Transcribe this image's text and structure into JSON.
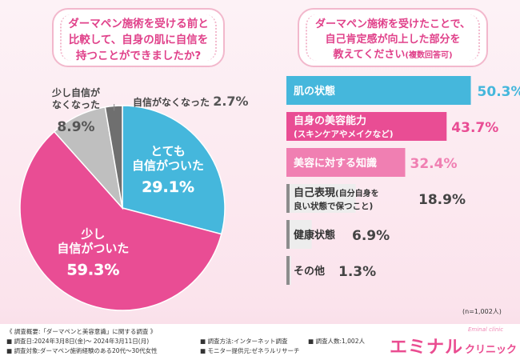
{
  "left_question": {
    "line1": "ダーマペン施術を受ける前と",
    "line2": "比較して、自身の肌に自信を",
    "line3": "持つことができましたか?"
  },
  "right_question": {
    "line1": "ダーマペン施術を受けたことで、",
    "line2": "自己肯定感が向上した部分を",
    "line3_main": "教えてください",
    "line3_note": "(複数回答可)"
  },
  "respondents_note": "(n=1,002人)",
  "chart_data": [
    {
      "type": "pie",
      "slices": [
        {
          "label_lines": [
            "とても",
            "自信がついた"
          ],
          "value": 29.1,
          "value_label": "29.1%",
          "color": "#45b7dc"
        },
        {
          "label_lines": [
            "少し",
            "自信がついた"
          ],
          "value": 59.3,
          "value_label": "59.3%",
          "color": "#e94d94"
        },
        {
          "label_lines": [
            "少し自信が",
            "なくなった"
          ],
          "value": 8.9,
          "value_label": "8.9%",
          "color": "#bfbfbf"
        },
        {
          "label_lines": [
            "自信がなくなった"
          ],
          "value": 2.7,
          "value_label": "2.7%",
          "color": "#6f6f6f"
        }
      ]
    },
    {
      "type": "bar",
      "orientation": "horizontal",
      "xlim": [
        0,
        60
      ],
      "grid": false,
      "bars": [
        {
          "label": "肌の状態",
          "sublabel": "",
          "value": 50.3,
          "value_label": "50.3%",
          "fill": "#45b7dc",
          "text_color": "#ffffff",
          "value_color": "#45b7dc"
        },
        {
          "label": "自身の美容能力",
          "sublabel": "(スキンケアやメイクなど)",
          "value": 43.7,
          "value_label": "43.7%",
          "fill": "#e94d94",
          "text_color": "#ffffff",
          "value_color": "#e94d94"
        },
        {
          "label": "美容に対する知識",
          "sublabel": "",
          "value": 32.4,
          "value_label": "32.4%",
          "fill": "#f07fb2",
          "text_color": "#ffffff",
          "value_color": "#f07fb2"
        },
        {
          "label": "自己表現",
          "label_note": "(自分自身を",
          "sublabel": "良い状態で保つこと)",
          "value": 18.9,
          "value_label": "18.9%",
          "fill": "#ededed",
          "text_color": "#333333",
          "value_color": "#444444"
        },
        {
          "label": "健康状態",
          "sublabel": "",
          "value": 6.9,
          "value_label": "6.9%",
          "fill": "#ededed",
          "text_color": "#333333",
          "value_color": "#444444"
        },
        {
          "label": "その他",
          "sublabel": "",
          "value": 1.3,
          "value_label": "1.3%",
          "fill": "#ededed",
          "text_color": "#333333",
          "value_color": "#444444"
        }
      ]
    }
  ],
  "footer": {
    "survey_title": "《 調査概要:「ダーマペンと美容意識」に関する調査 》",
    "survey_date": "■ 調査日:2024年3月8日(金)〜 2024年3月11日(月)",
    "survey_method": "■ 調査方法:インターネット調査",
    "survey_count": "■ 調査人数:1,002人",
    "survey_target": "■ 調査対象:ダーマペン施術経験のある20代〜30代女性",
    "survey_monitor": "■ モニター提供元:ゼネラルリサーチ"
  },
  "logo": {
    "main": "エミナル",
    "sub": "クリニック",
    "small": "Eminal clinic"
  }
}
